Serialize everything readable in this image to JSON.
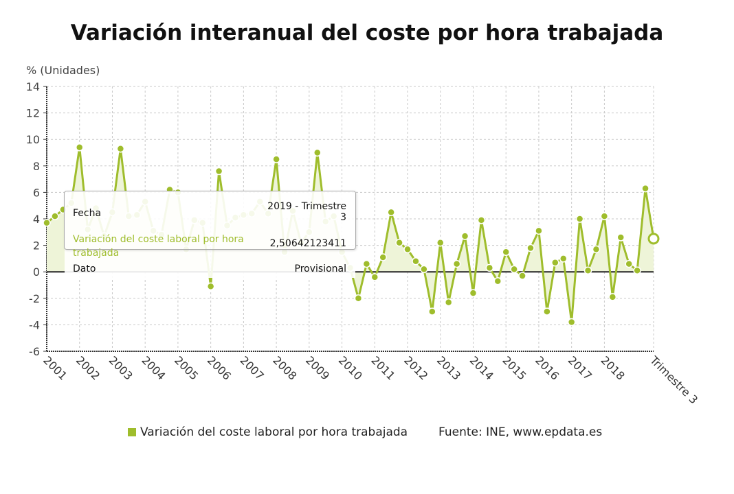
{
  "title": "Variación interanual del coste por hora trabajada",
  "colors": {
    "series": "#9fbd2c",
    "fill": "#eef4d8",
    "zero_line": "#222222",
    "grid": "#c8c8c8"
  },
  "chart_data": {
    "type": "area",
    "title": "Variación interanual del coste por hora trabajada",
    "ylabel": "% (Unidades)",
    "ylim": [
      -6,
      14
    ],
    "yticks": [
      -6,
      -4,
      -2,
      0,
      2,
      4,
      6,
      8,
      10,
      12,
      14
    ],
    "ytick_labels": [
      "-6",
      "-4",
      "-2",
      "0",
      "2",
      "4",
      "6",
      "8",
      "10",
      "12",
      "14"
    ],
    "xtick_labels": [
      "2001",
      "2002",
      "2003",
      "2004",
      "2005",
      "2006",
      "2007",
      "2008",
      "2009",
      "2010",
      "2011",
      "2012",
      "2013",
      "2014",
      "2015",
      "2016",
      "2017",
      "2018",
      "Trimestre 3"
    ],
    "grid": true,
    "legend_placement": "bottom",
    "start": "2001 - Trimestre 1",
    "end": "2019 - Trimestre 3",
    "series": [
      {
        "name": "Variación del coste laboral por hora trabajada",
        "values": [
          3.7,
          4.2,
          4.7,
          5.2,
          9.4,
          3.2,
          4.8,
          2.7,
          4.5,
          9.3,
          4.2,
          4.3,
          5.3,
          3.1,
          2.8,
          6.2,
          6.0,
          1.7,
          3.9,
          3.7,
          -1.1,
          7.6,
          3.5,
          4.1,
          4.3,
          4.4,
          5.3,
          4.4,
          8.5,
          1.5,
          4.6,
          2.2,
          3.0,
          9.0,
          3.8,
          4.2,
          1.5,
          0.3,
          -2.0,
          0.6,
          -0.4,
          1.1,
          4.5,
          2.2,
          1.7,
          0.8,
          0.2,
          -3.0,
          2.2,
          -2.3,
          0.6,
          2.7,
          -1.6,
          3.9,
          0.3,
          -0.7,
          1.5,
          0.2,
          -0.3,
          1.8,
          3.1,
          -3.0,
          0.7,
          1.0,
          -3.8,
          4.0,
          0.1,
          1.7,
          4.2,
          -1.9,
          2.6,
          0.6,
          0.1,
          6.3,
          2.50642123411
        ]
      }
    ]
  },
  "tooltip": {
    "fecha_label": "Fecha",
    "fecha_value_line1": "2019 - Trimestre",
    "fecha_value_line2": "3",
    "series_label_line1": "Variación del coste laboral por hora",
    "series_label_line2": "trabajada",
    "series_value": "2,50642123411",
    "dato_label": "Dato",
    "dato_value": "Provisional"
  },
  "legend": {
    "label": "Variación del coste laboral por hora trabajada"
  },
  "source": "Fuente: INE, www.epdata.es"
}
